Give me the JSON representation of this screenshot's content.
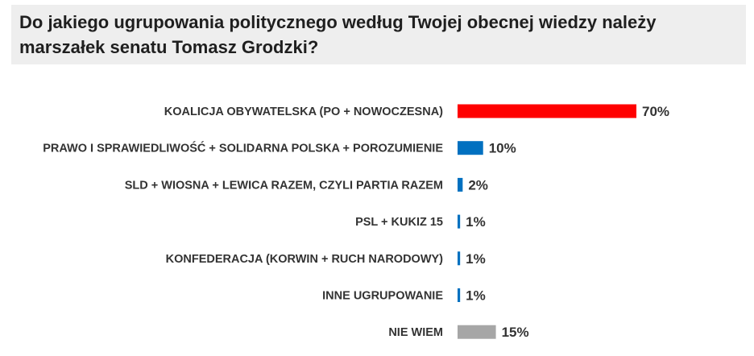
{
  "header": {
    "title": "Do jakiego ugrupowania politycznego według Twojej obecnej wiedzy należy marszałek senatu Tomasz Grodzki?"
  },
  "chart_data": {
    "type": "bar",
    "orientation": "horizontal",
    "categories": [
      "KOALICJA OBYWATELSKA  (PO + NOWOCZESNA)",
      "PRAWO I SPRAWIEDLIWOŚĆ + SOLIDARNA POLSKA + POROZUMIENIE",
      "SLD + WIOSNA + LEWICA RAZEM, CZYLI PARTIA RAZEM",
      "PSL + KUKIZ 15",
      "KONFEDERACJA (KORWIN + RUCH NARODOWY)",
      "INNE UGRUPOWANIE",
      "NIE WIEM"
    ],
    "values": [
      70,
      10,
      2,
      1,
      1,
      1,
      15
    ],
    "value_labels": [
      "70%",
      "10%",
      "2%",
      "1%",
      "1%",
      "1%",
      "15%"
    ],
    "colors": [
      "#ff0000",
      "#0070c0",
      "#0070c0",
      "#0070c0",
      "#0070c0",
      "#0070c0",
      "#a6a6a6"
    ],
    "xlim": [
      0,
      70
    ],
    "grid": false,
    "legend": "none"
  }
}
